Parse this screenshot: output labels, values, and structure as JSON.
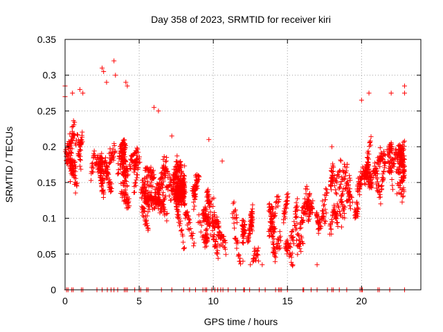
{
  "chart_data": {
    "type": "scatter",
    "title": "Day 358 of 2023, SRMTID for receiver kiri",
    "xlabel": "GPS time / hours",
    "ylabel": "SRMTID / TECUs",
    "xlim": [
      0,
      24
    ],
    "ylim": [
      0,
      0.35
    ],
    "x_ticks": [
      0,
      5,
      10,
      15,
      20
    ],
    "x_tick_labels": [
      "0",
      "5",
      "10",
      "15",
      "20"
    ],
    "y_ticks": [
      0,
      0.05,
      0.1,
      0.15,
      0.2,
      0.25,
      0.3,
      0.35
    ],
    "y_tick_labels": [
      "0",
      "0.05",
      "0.1",
      "0.15",
      "0.2",
      "0.25",
      "0.3",
      "0.35"
    ],
    "grid": true,
    "marker": "+",
    "color": "#ff0000",
    "series": [
      {
        "name": "SRMTID",
        "trend": [
          [
            0.0,
            0.2
          ],
          [
            0.5,
            0.18
          ],
          [
            1.0,
            0.17
          ],
          [
            1.5,
            0.19
          ],
          [
            2.0,
            0.16
          ],
          [
            2.5,
            0.18
          ],
          [
            3.0,
            0.2
          ],
          [
            3.5,
            0.17
          ],
          [
            4.0,
            0.19
          ],
          [
            4.5,
            0.16
          ],
          [
            5.0,
            0.14
          ],
          [
            5.5,
            0.15
          ],
          [
            6.0,
            0.13
          ],
          [
            6.5,
            0.12
          ],
          [
            7.0,
            0.16
          ],
          [
            7.5,
            0.14
          ],
          [
            8.0,
            0.12
          ],
          [
            8.5,
            0.11
          ],
          [
            9.0,
            0.1
          ],
          [
            9.5,
            0.1
          ],
          [
            10.0,
            0.09
          ],
          [
            10.5,
            0.1
          ],
          [
            11.0,
            0.1
          ],
          [
            11.5,
            0.095
          ],
          [
            12.0,
            0.07
          ],
          [
            12.5,
            0.08
          ],
          [
            13.0,
            0.085
          ],
          [
            13.5,
            0.08
          ],
          [
            14.0,
            0.085
          ],
          [
            14.5,
            0.085
          ],
          [
            15.0,
            0.08
          ],
          [
            15.5,
            0.09
          ],
          [
            16.0,
            0.095
          ],
          [
            16.5,
            0.1
          ],
          [
            17.0,
            0.09
          ],
          [
            17.5,
            0.1
          ],
          [
            18.0,
            0.13
          ],
          [
            18.5,
            0.14
          ],
          [
            19.0,
            0.12
          ],
          [
            19.5,
            0.12
          ],
          [
            20.0,
            0.15
          ],
          [
            20.5,
            0.17
          ],
          [
            21.0,
            0.15
          ],
          [
            21.5,
            0.15
          ],
          [
            22.0,
            0.18
          ],
          [
            22.5,
            0.19
          ],
          [
            22.9,
            0.19
          ]
        ],
        "scatter_spread": 0.035,
        "point_count": 2600,
        "highlights": [
          [
            0.0,
            0.285
          ],
          [
            0.0,
            0.27
          ],
          [
            0.5,
            0.275
          ],
          [
            1.0,
            0.28
          ],
          [
            1.2,
            0.275
          ],
          [
            2.5,
            0.31
          ],
          [
            2.6,
            0.305
          ],
          [
            2.8,
            0.29
          ],
          [
            3.3,
            0.32
          ],
          [
            3.4,
            0.3
          ],
          [
            4.1,
            0.29
          ],
          [
            4.2,
            0.285
          ],
          [
            6.0,
            0.255
          ],
          [
            6.3,
            0.25
          ],
          [
            7.2,
            0.215
          ],
          [
            9.7,
            0.21
          ],
          [
            10.6,
            0.18
          ],
          [
            12.0,
            0.04
          ],
          [
            12.5,
            0.035
          ],
          [
            13.3,
            0.035
          ],
          [
            17.0,
            0.035
          ],
          [
            18.0,
            0.2
          ],
          [
            20.0,
            0.265
          ],
          [
            20.5,
            0.275
          ],
          [
            22.0,
            0.275
          ],
          [
            22.9,
            0.285
          ],
          [
            22.9,
            0.275
          ]
        ],
        "zero_points_x": [
          0.1,
          0.2,
          0.45,
          0.55,
          1.1,
          1.2,
          2.15,
          2.5,
          2.85,
          3.1,
          3.3,
          3.55,
          4.0,
          4.1,
          4.2,
          4.7,
          5.0,
          5.1,
          5.5,
          5.6,
          6.5,
          7.2,
          8.0,
          8.4,
          8.8,
          9.3,
          9.45,
          9.55,
          9.9,
          10.1,
          10.3,
          10.5,
          10.65,
          11.0,
          11.5,
          12.05,
          12.1,
          12.45,
          13.1,
          13.5,
          14.2,
          14.4,
          14.5,
          14.6,
          15.0,
          16.05,
          16.1,
          16.6,
          17.0,
          17.7,
          18.0,
          18.1,
          18.5,
          19.0,
          19.9,
          20.0,
          20.05,
          21.1,
          21.2,
          21.9,
          22.9
        ]
      }
    ]
  }
}
